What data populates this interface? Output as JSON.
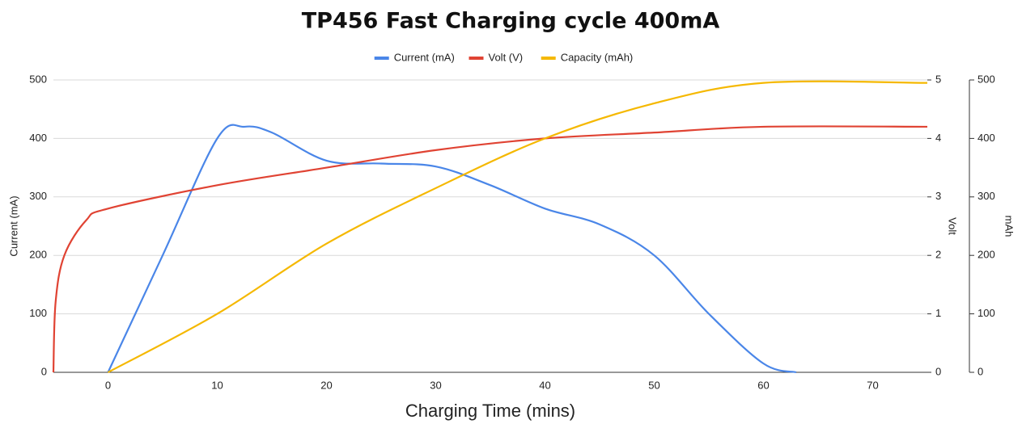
{
  "chart_data": {
    "type": "line",
    "title": "TP456 Fast Charging cycle 400mA",
    "x_label": "Charging Time (mins)",
    "y_label": "Current (mA)",
    "y2_label": "Volt",
    "y3_label": "mAh",
    "xlim": [
      -5,
      75
    ],
    "xticks": [
      0,
      10,
      20,
      30,
      40,
      50,
      60,
      70
    ],
    "ylim": [
      0,
      500
    ],
    "yticks": [
      0,
      100,
      200,
      300,
      400,
      500
    ],
    "y2lim": [
      0,
      5
    ],
    "y2ticks": [
      0,
      1,
      2,
      3,
      4,
      5
    ],
    "y3lim": [
      0,
      500
    ],
    "y3ticks": [
      0,
      100,
      200,
      300,
      400,
      500
    ],
    "grid": true,
    "legend": "top",
    "series": [
      {
        "name": "Current (mA)",
        "color": "#4a86e8",
        "x": [
          0,
          5,
          10,
          12.5,
          15,
          20,
          25,
          30,
          35,
          40,
          45,
          50,
          55,
          60,
          63
        ],
        "values": [
          0,
          200,
          400,
          420,
          410,
          362,
          357,
          352,
          320,
          280,
          253,
          200,
          100,
          15,
          0
        ]
      },
      {
        "name": "Volt (V)",
        "color": "#e04333",
        "axis": "y2",
        "x": [
          -5,
          -4.8,
          -4,
          -2,
          0,
          10,
          20,
          30,
          40,
          50,
          60,
          75
        ],
        "values": [
          0,
          1.2,
          2.0,
          2.6,
          2.8,
          3.2,
          3.5,
          3.8,
          4.0,
          4.1,
          4.2,
          4.2
        ]
      },
      {
        "name": "Capacity (mAh)",
        "color": "#f5b800",
        "axis": "y3",
        "x": [
          0,
          10,
          20,
          30,
          40,
          50,
          60,
          75
        ],
        "values": [
          0,
          100,
          220,
          315,
          400,
          460,
          495,
          495
        ]
      }
    ]
  }
}
